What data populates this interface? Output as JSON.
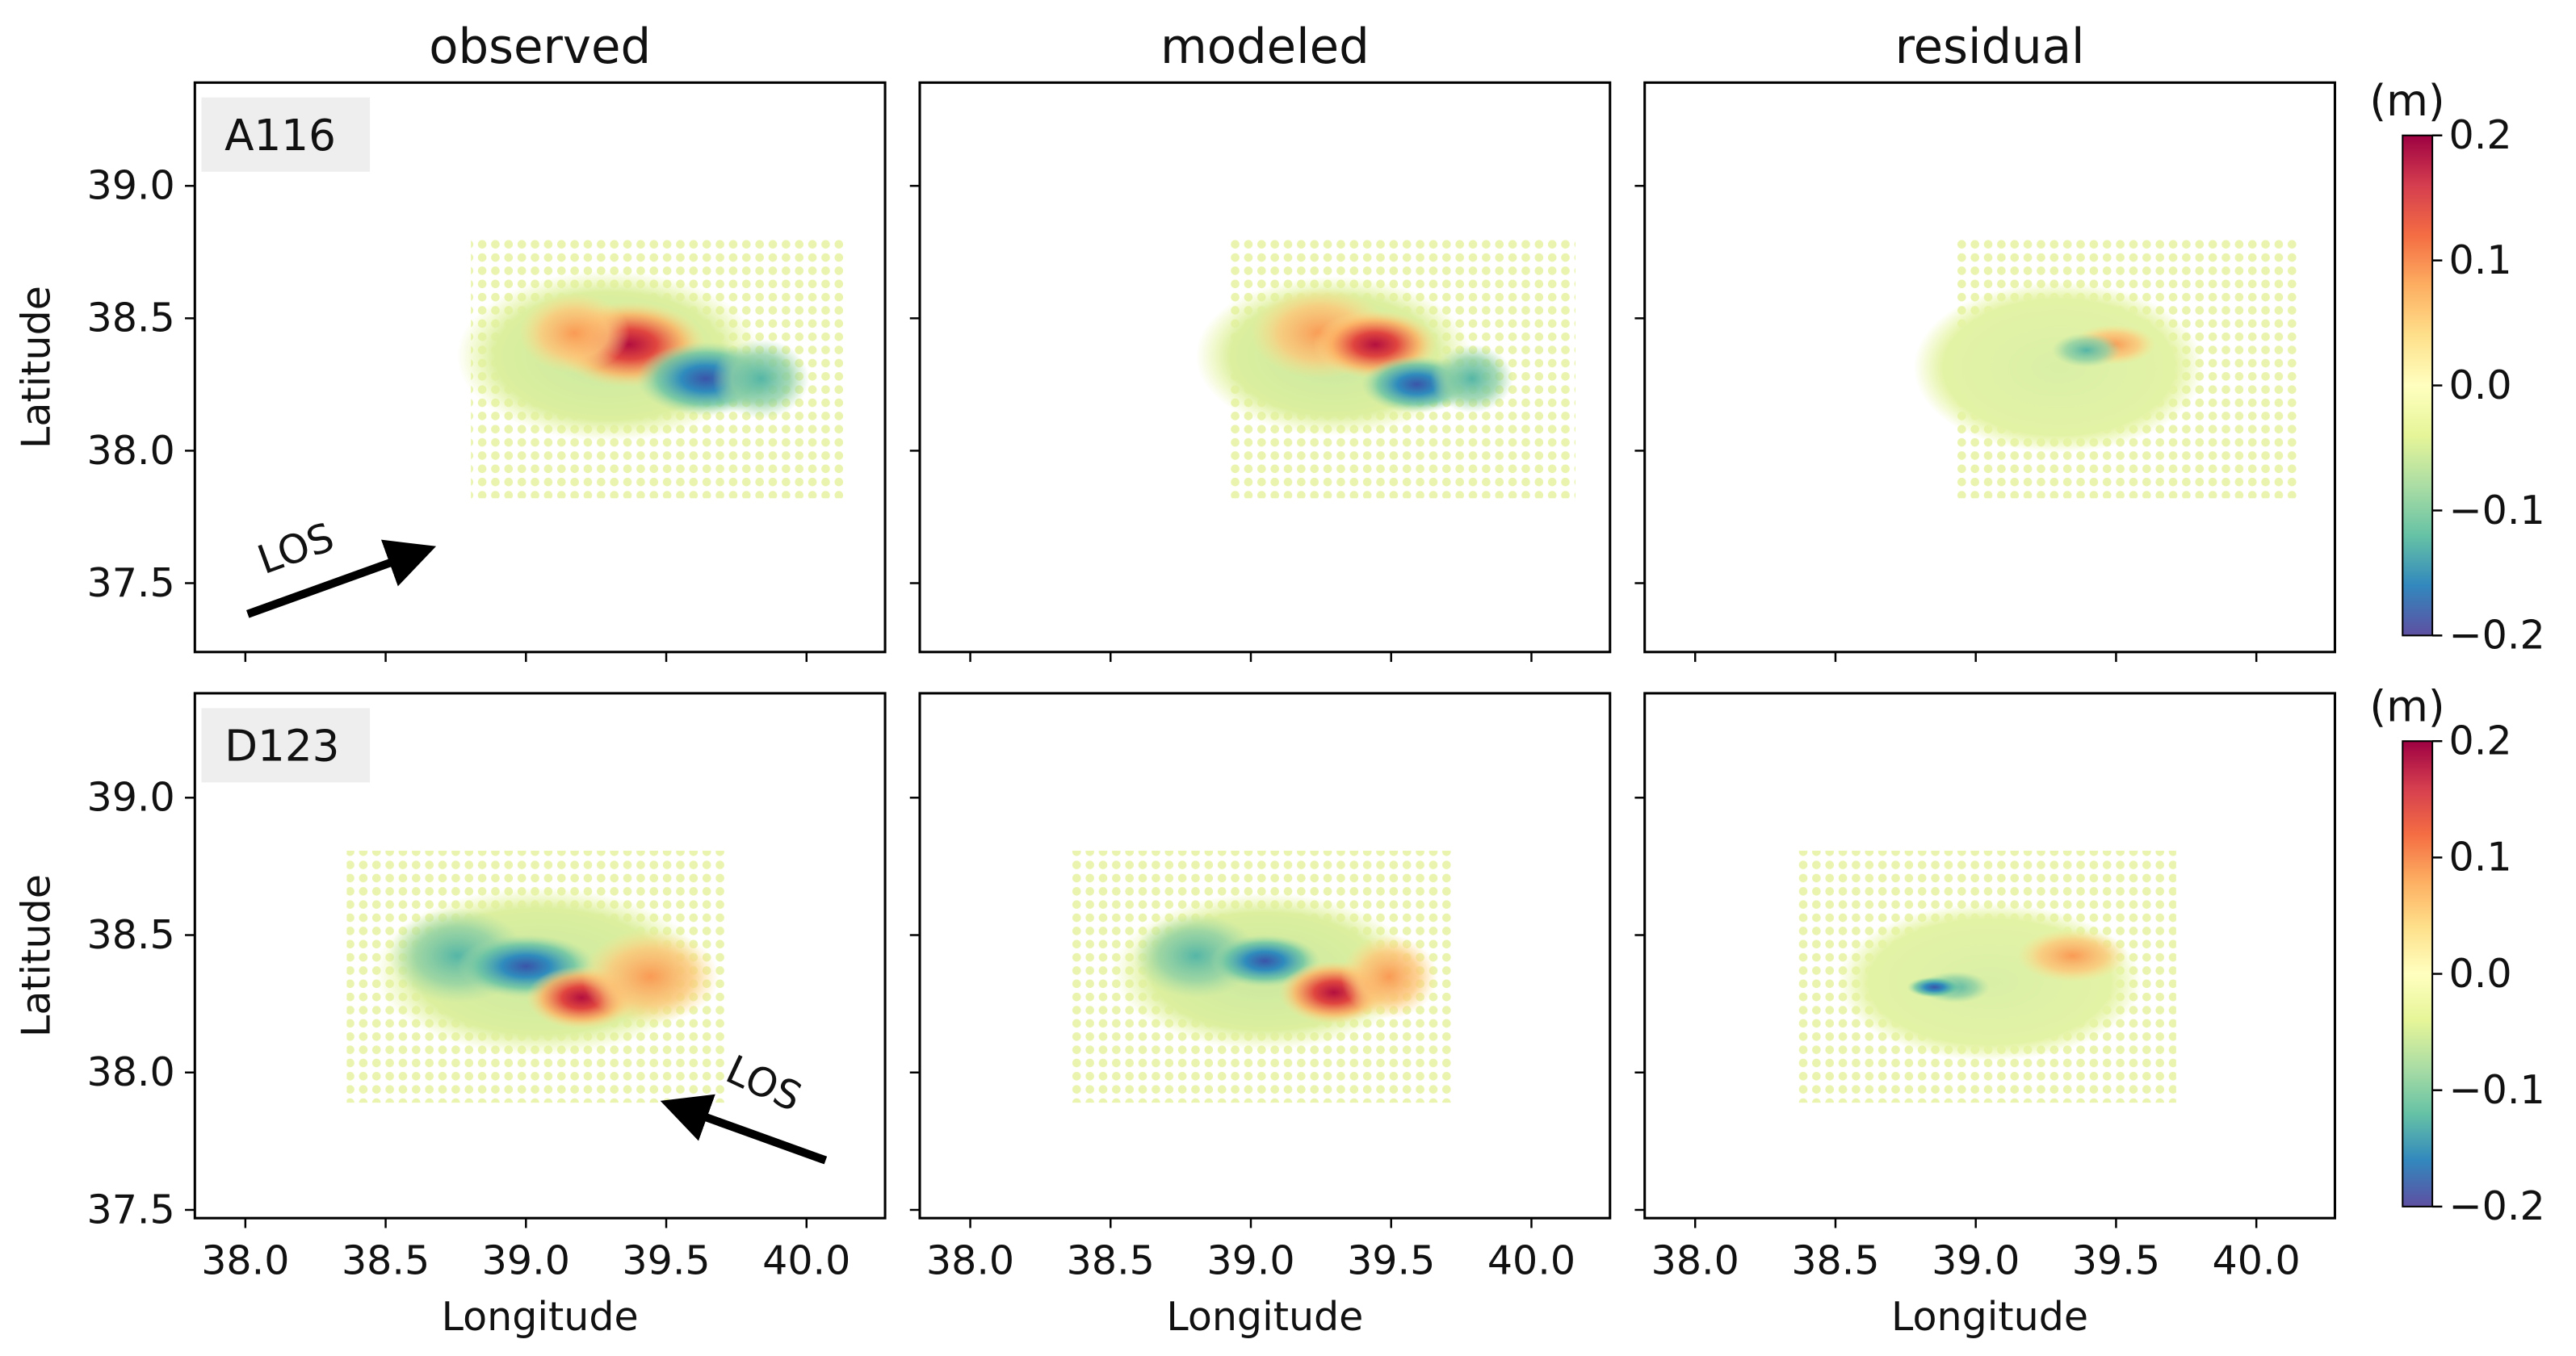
{
  "chart_data": [
    {
      "type": "scatter",
      "title": "observed",
      "annotation": "A116",
      "los": "LOS",
      "ylabel": "Latitude",
      "xlim": [
        37.82,
        40.28
      ],
      "ylim": [
        37.24,
        39.39
      ],
      "xticks": [
        38,
        38.5,
        39,
        39.5,
        40
      ],
      "yticks": [
        37.5,
        {
          "value": 38,
          "label": "38.0"
        },
        38.5,
        {
          "value": 39,
          "label": "39.0"
        }
      ]
    },
    {
      "type": "scatter",
      "title": "modeled",
      "xlim": [
        37.82,
        40.28
      ],
      "ylim": [
        37.24,
        39.39
      ],
      "xticks": [
        38,
        38.5,
        39,
        39.5,
        40
      ],
      "yticks": [
        37.5,
        38,
        38.5,
        39
      ]
    },
    {
      "type": "scatter",
      "title": "residual",
      "xlim": [
        37.82,
        40.28
      ],
      "ylim": [
        37.24,
        39.39
      ],
      "xticks": [
        38,
        38.5,
        39,
        39.5,
        40
      ],
      "yticks": [
        37.5,
        38,
        38.5,
        39
      ]
    },
    {
      "type": "scatter",
      "annotation": "D123",
      "los": "LOS",
      "ylabel": "Latitude",
      "xlabel": "Longitude",
      "xlim": [
        37.82,
        40.28
      ],
      "ylim": [
        37.47,
        39.38
      ],
      "xticks": [
        {
          "value": 38,
          "label": "38.0"
        },
        38.5,
        {
          "value": 39,
          "label": "39.0"
        },
        39.5,
        {
          "value": 40,
          "label": "40.0"
        }
      ],
      "yticks": [
        37.5,
        {
          "value": 38,
          "label": "38.0"
        },
        38.5,
        {
          "value": 39,
          "label": "39.0"
        }
      ]
    },
    {
      "type": "scatter",
      "xlabel": "Longitude",
      "xlim": [
        37.82,
        40.28
      ],
      "ylim": [
        37.47,
        39.38
      ],
      "xticks": [
        {
          "value": 38,
          "label": "38.0"
        },
        38.5,
        {
          "value": 39,
          "label": "39.0"
        },
        39.5,
        {
          "value": 40,
          "label": "40.0"
        }
      ],
      "yticks": [
        37.5,
        38,
        38.5,
        39
      ]
    },
    {
      "type": "scatter",
      "xlabel": "Longitude",
      "xlim": [
        37.82,
        40.28
      ],
      "ylim": [
        37.47,
        39.38
      ],
      "xticks": [
        {
          "value": 38,
          "label": "38.0"
        },
        38.5,
        {
          "value": 39,
          "label": "39.0"
        },
        39.5,
        {
          "value": 40,
          "label": "40.0"
        }
      ],
      "yticks": [
        37.5,
        38,
        38.5,
        39
      ]
    }
  ],
  "colorbars": [
    {
      "label": "(m)",
      "ylim": [
        -0.2,
        0.2
      ],
      "ticks": [
        0.2,
        0.1,
        {
          "value": 0,
          "label": "0.0"
        },
        {
          "value": -0.1,
          "label": "−0.1"
        },
        {
          "value": -0.2,
          "label": "−0.2"
        }
      ]
    },
    {
      "label": "(m)",
      "ylim": [
        -0.2,
        0.2
      ],
      "ticks": [
        0.2,
        0.1,
        {
          "value": 0,
          "label": "0.0"
        },
        {
          "value": -0.1,
          "label": "−0.1"
        },
        {
          "value": -0.2,
          "label": "−0.2"
        }
      ]
    }
  ]
}
